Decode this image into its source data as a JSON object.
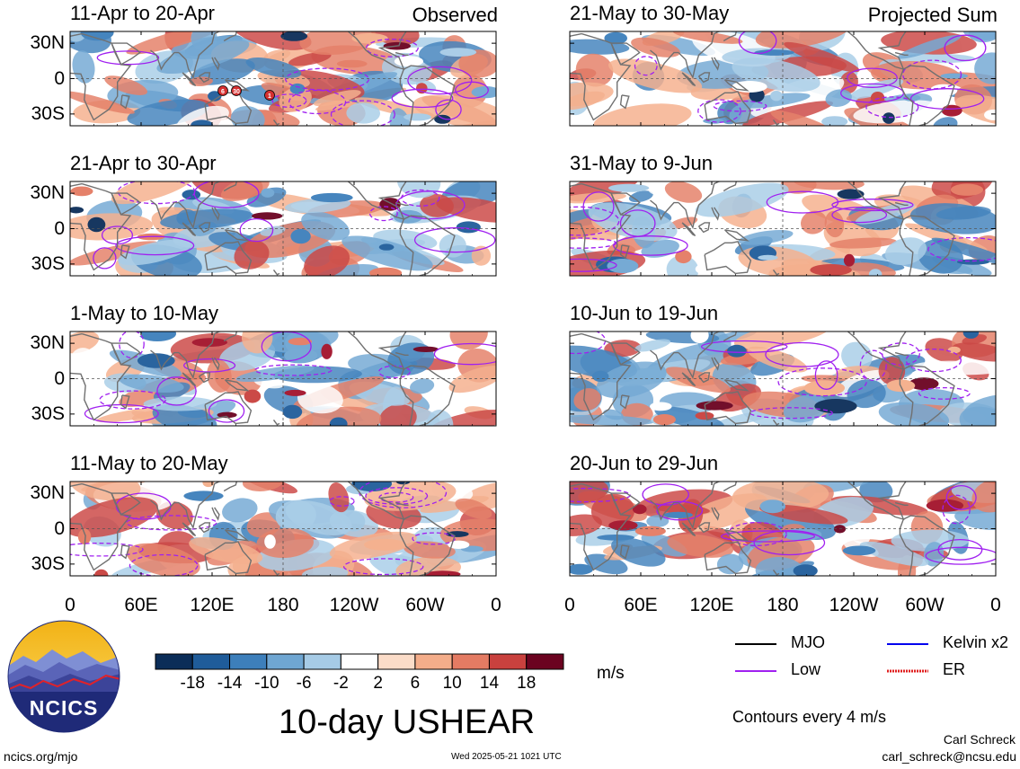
{
  "panels": [
    {
      "title": "11-Apr to 20-Apr",
      "label": "Observed",
      "col": 0,
      "row": 0,
      "seed": 11
    },
    {
      "title": "21-Apr to 30-Apr",
      "label": "",
      "col": 0,
      "row": 1,
      "seed": 23
    },
    {
      "title": "1-May to 10-May",
      "label": "",
      "col": 0,
      "row": 2,
      "seed": 37
    },
    {
      "title": "11-May to 20-May",
      "label": "",
      "col": 0,
      "row": 3,
      "seed": 41
    },
    {
      "title": "21-May to 30-May",
      "label": "Projected Sum",
      "col": 1,
      "row": 0,
      "seed": 53
    },
    {
      "title": "31-May to 9-Jun",
      "label": "",
      "col": 1,
      "row": 1,
      "seed": 67
    },
    {
      "title": "10-Jun to 19-Jun",
      "label": "",
      "col": 1,
      "row": 2,
      "seed": 79
    },
    {
      "title": "20-Jun to 29-Jun",
      "label": "",
      "col": 1,
      "row": 3,
      "seed": 83
    }
  ],
  "lat_labels": [
    "30N",
    "0",
    "30S"
  ],
  "lon_labels": [
    "0",
    "60E",
    "120E",
    "180",
    "120W",
    "60W",
    "0"
  ],
  "storm_markers": [
    "6",
    "30",
    "1"
  ],
  "colorbar": {
    "ticks": [
      "-18",
      "-14",
      "-10",
      "-6",
      "-2",
      "2",
      "6",
      "10",
      "14",
      "18"
    ],
    "colors": [
      "#0b2d58",
      "#1f5c9a",
      "#3d7fbb",
      "#6fa6d2",
      "#a6cbe6",
      "#d7e8f3",
      "#ffffff",
      "#fbdcc8",
      "#f4ad8a",
      "#e47b63",
      "#c9413e",
      "#a3122b",
      "#6b0320"
    ],
    "units": "m/s"
  },
  "legend": {
    "items": [
      {
        "label": "MJO",
        "color": "#000000"
      },
      {
        "label": "Kelvin x2",
        "color": "#0000ee"
      },
      {
        "label": "Low",
        "color": "#a020f0"
      },
      {
        "label": "ER",
        "color": "#e02020"
      }
    ],
    "contours_note": "Contours every 4 m/s"
  },
  "logo_text": "NCICS",
  "main_title": "10-day USHEAR",
  "footer": {
    "url": "ncics.org/mjo",
    "timestamp": "Wed 2025-05-21 1021 UTC",
    "author": "Carl Schreck",
    "email": "carl_schreck@ncsu.edu"
  }
}
